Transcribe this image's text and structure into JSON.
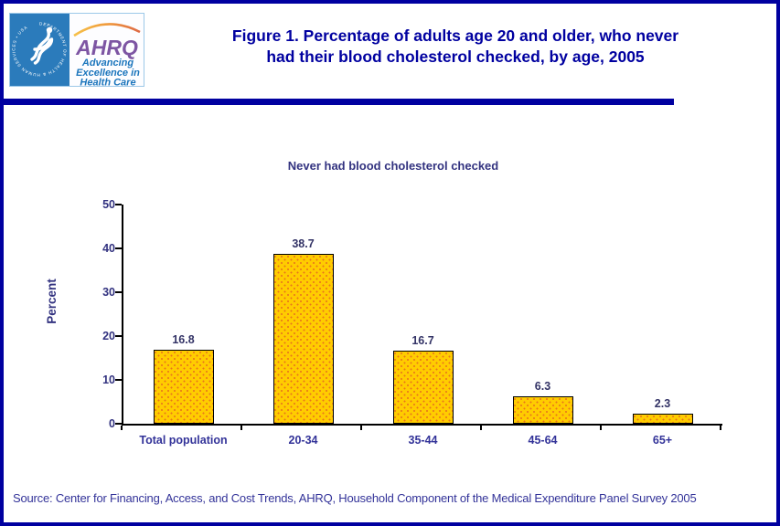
{
  "header": {
    "title_line1": "Figure 1. Percentage of adults age 20 and older, who never",
    "title_line2": "had their blood cholesterol checked, by age, 2005",
    "logo": {
      "hhs_ring_text": "DEPARTMENT OF HEALTH & HUMAN SERVICES • USA",
      "ahrq_acronym": "AHRQ",
      "tagline_line1": "Advancing",
      "tagline_line2": "Excellence in",
      "tagline_line3": "Health Care"
    }
  },
  "chart_data": {
    "type": "bar",
    "title": "Never had blood cholesterol checked",
    "xlabel": "",
    "ylabel": "Percent",
    "categories": [
      "Total population",
      "20-34",
      "35-44",
      "45-64",
      "65+"
    ],
    "values": [
      16.8,
      38.7,
      16.7,
      6.3,
      2.3
    ],
    "ylim": [
      0,
      50
    ],
    "yticks": [
      0,
      10,
      20,
      30,
      40,
      50
    ],
    "grid": false,
    "legend_position": "none",
    "bar_fill": "#FFCC00",
    "bar_dot_color": "#E8761B",
    "bar_border": "#000000",
    "axis_text_color": "#333380",
    "value_label_color": "#333366"
  },
  "footer": {
    "source": "Source: Center for Financing, Access, and Cost Trends, AHRQ, Household Component of the Medical Expenditure Panel Survey 2005"
  },
  "colors": {
    "page_border": "#0000A0",
    "title_navy": "#0000A0",
    "hhs_blue": "#2B7BBB",
    "ahrq_purple": "#7D55A3",
    "tagline_blue": "#1B75BC"
  }
}
